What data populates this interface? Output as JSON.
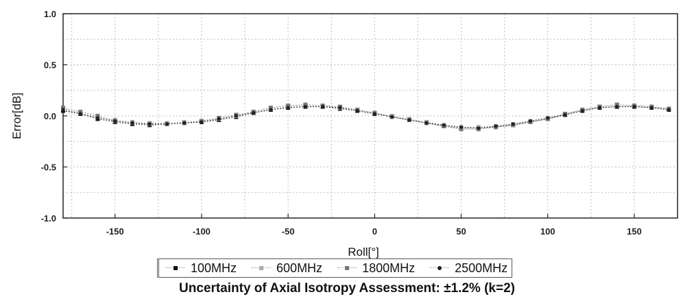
{
  "chart_data": {
    "type": "scatter",
    "title": "",
    "xlabel": "Roll[°]",
    "ylabel": "Error[dB]",
    "xlim": [
      -180,
      175
    ],
    "ylim": [
      -1.0,
      1.0
    ],
    "x_ticks": [
      "-150",
      "-100",
      "-50",
      "0",
      "50",
      "100",
      "150"
    ],
    "y_ticks": [
      "1.0",
      "0.5",
      "0.0",
      "-0.5",
      "-1.0"
    ],
    "grid": true,
    "legend_position": "bottom",
    "x": [
      -180,
      -170,
      -160,
      -150,
      -140,
      -130,
      -120,
      -110,
      -100,
      -90,
      -80,
      -70,
      -60,
      -50,
      -40,
      -30,
      -20,
      -10,
      0,
      10,
      20,
      30,
      40,
      50,
      60,
      70,
      80,
      90,
      100,
      110,
      120,
      130,
      140,
      150,
      160,
      170
    ],
    "series": [
      {
        "name": "100MHz",
        "color": "#111111",
        "marker": "square",
        "values": [
          0.05,
          0.02,
          -0.03,
          -0.06,
          -0.08,
          -0.09,
          -0.08,
          -0.07,
          -0.06,
          -0.04,
          -0.01,
          0.03,
          0.06,
          0.08,
          0.09,
          0.09,
          0.07,
          0.05,
          0.02,
          -0.01,
          -0.04,
          -0.07,
          -0.1,
          -0.12,
          -0.12,
          -0.11,
          -0.09,
          -0.06,
          -0.03,
          0.01,
          0.05,
          0.08,
          0.09,
          0.09,
          0.08,
          0.06
        ]
      },
      {
        "name": "600MHz",
        "color": "#aaaaaa",
        "marker": "square",
        "values": [
          0.07,
          0.03,
          -0.01,
          -0.04,
          -0.06,
          -0.07,
          -0.07,
          -0.06,
          -0.05,
          -0.03,
          0.0,
          0.04,
          0.07,
          0.09,
          0.1,
          0.1,
          0.08,
          0.06,
          0.03,
          0.0,
          -0.03,
          -0.06,
          -0.09,
          -0.11,
          -0.11,
          -0.1,
          -0.08,
          -0.05,
          -0.02,
          0.02,
          0.06,
          0.09,
          0.1,
          0.1,
          0.09,
          0.07
        ]
      },
      {
        "name": "1800MHz",
        "color": "#777777",
        "marker": "square",
        "values": [
          0.08,
          0.04,
          0.0,
          -0.05,
          -0.07,
          -0.08,
          -0.08,
          -0.07,
          -0.05,
          -0.02,
          0.01,
          0.04,
          0.08,
          0.1,
          0.11,
          0.1,
          0.09,
          0.06,
          0.03,
          -0.01,
          -0.04,
          -0.07,
          -0.1,
          -0.13,
          -0.13,
          -0.11,
          -0.09,
          -0.06,
          -0.03,
          0.02,
          0.06,
          0.09,
          0.11,
          0.1,
          0.09,
          0.07
        ]
      },
      {
        "name": "2500MHz",
        "color": "#222222",
        "marker": "circle",
        "values": [
          0.06,
          0.02,
          -0.02,
          -0.05,
          -0.07,
          -0.08,
          -0.08,
          -0.07,
          -0.06,
          -0.03,
          0.0,
          0.03,
          0.06,
          0.08,
          0.09,
          0.09,
          0.08,
          0.05,
          0.02,
          -0.01,
          -0.04,
          -0.07,
          -0.09,
          -0.11,
          -0.12,
          -0.1,
          -0.08,
          -0.05,
          -0.02,
          0.01,
          0.05,
          0.08,
          0.09,
          0.09,
          0.08,
          0.06
        ]
      }
    ]
  },
  "legend": {
    "items": [
      {
        "label": "100MHz",
        "color": "#111111",
        "marker": "square"
      },
      {
        "label": "600MHz",
        "color": "#aaaaaa",
        "marker": "square"
      },
      {
        "label": "1800MHz",
        "color": "#777777",
        "marker": "square"
      },
      {
        "label": "2500MHz",
        "color": "#222222",
        "marker": "circle"
      }
    ]
  },
  "caption": "Uncertainty of Axial Isotropy Assessment: ±1.2% (k=2)"
}
